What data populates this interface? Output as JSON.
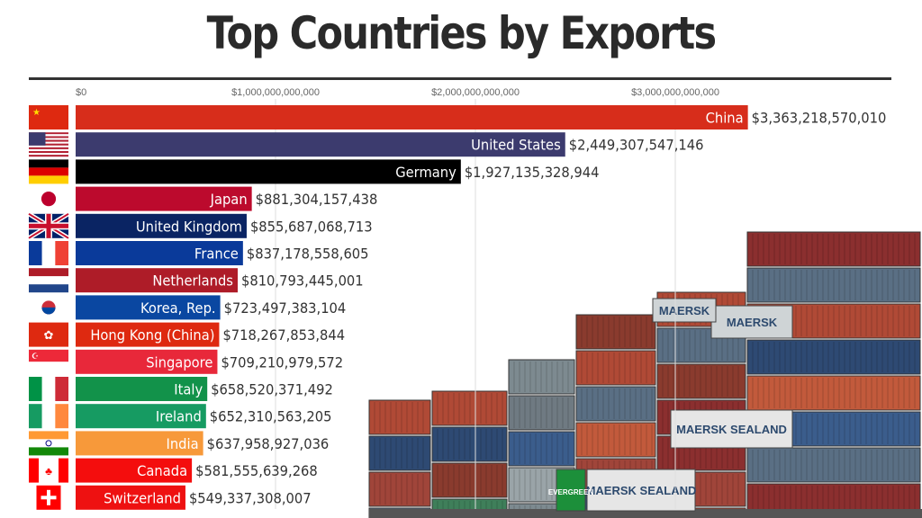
{
  "chart_data": {
    "type": "bar",
    "orientation": "horizontal",
    "title": "Top Countries by Exports",
    "xlabel": "",
    "ylabel": "",
    "xlim": [
      0,
      3500000000000
    ],
    "x_ticks": [
      0,
      1000000000000,
      2000000000000,
      3000000000000
    ],
    "x_tick_labels": [
      "$0",
      "$1,000,000,000,000",
      "$2,000,000,000,000",
      "$3,000,000,000,000"
    ],
    "grid": true,
    "categories": [
      "China",
      "United States",
      "Germany",
      "Japan",
      "United Kingdom",
      "France",
      "Netherlands",
      "Korea, Rep.",
      "Hong Kong (China)",
      "Singapore",
      "Italy",
      "Ireland",
      "India",
      "Canada",
      "Switzerland"
    ],
    "values": [
      3363218570010,
      2449307547146,
      1927135328944,
      881304157438,
      855687068713,
      837178558605,
      810793445001,
      723497383104,
      718267853844,
      709210979572,
      658520371492,
      652310563205,
      637958927036,
      581555639268,
      549337308007
    ],
    "value_labels": [
      "$3,363,218,570,010",
      "$2,449,307,547,146",
      "$1,927,135,328,944",
      "$881,304,157,438",
      "$855,687,068,713",
      "$837,178,558,605",
      "$810,793,445,001",
      "$723,497,383,104",
      "$718,267,853,844",
      "$709,210,979,572",
      "$658,520,371,492",
      "$652,310,563,205",
      "$637,958,927,036",
      "$581,555,639,268",
      "$549,337,308,007"
    ],
    "colors": [
      "#d72d1b",
      "#3c3b6e",
      "#000000",
      "#bc0a2d",
      "#0a2463",
      "#0a3a9a",
      "#ae1c28",
      "#0a47a1",
      "#de2910",
      "#e8283a",
      "#12924a",
      "#169b62",
      "#f7993a",
      "#f40d0d",
      "#ee1111"
    ],
    "flags": [
      "flag-china",
      "flag-usa",
      "flag-germany",
      "flag-japan",
      "flag-uk",
      "flag-france",
      "flag-netherlands",
      "flag-korea",
      "flag-hong-kong",
      "flag-singapore",
      "flag-italy",
      "flag-ireland",
      "flag-india",
      "flag-canada",
      "flag-switzerland"
    ]
  },
  "photo_labels": [
    "MAERSK",
    "MAERSK",
    "MAERSK SEALAND",
    "MAERSK SEALAND",
    "EVERGREEN"
  ]
}
